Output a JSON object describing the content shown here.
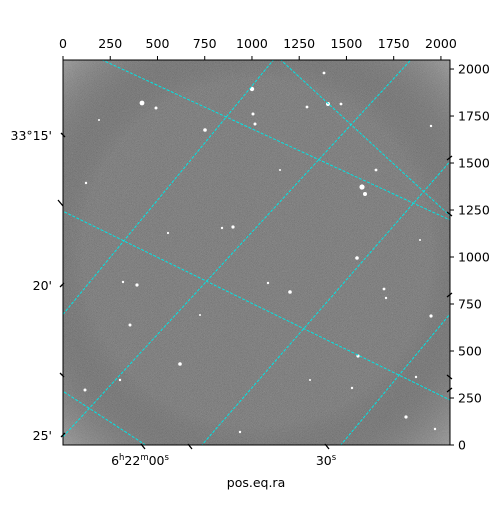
{
  "figure": {
    "xlabel": "pos.eq.ra",
    "top_ticks": [
      "0",
      "250",
      "500",
      "750",
      "1000",
      "1250",
      "1500",
      "1750",
      "2000"
    ],
    "right_ticks": [
      "0",
      "250",
      "500",
      "750",
      "1000",
      "1250",
      "1500",
      "1750",
      "2000"
    ],
    "left_ticks": [
      "33°15'",
      "20'",
      "25'"
    ],
    "bottom_ra_ticks": [
      {
        "h": "6",
        "m": "22",
        "s": "00"
      },
      {
        "s": "30"
      }
    ],
    "grid_color": "#00e5e5",
    "background_color": "#3a3a3a"
  }
}
